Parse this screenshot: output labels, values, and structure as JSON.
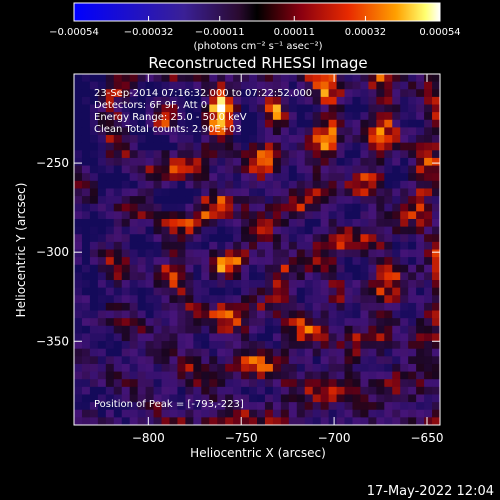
{
  "chart_data": {
    "type": "heatmap",
    "title": "Reconstructed RHESSI Image",
    "xlabel": "Heliocentric X (arcsec)",
    "ylabel": "Heliocentric Y (arcsec)",
    "xlim": [
      -840,
      -643
    ],
    "ylim": [
      -397,
      -200
    ],
    "x_ticks": [
      -800,
      -750,
      -700,
      -650
    ],
    "y_ticks": [
      -250,
      -300,
      -350
    ],
    "x_tick_labels": [
      "−800",
      "−750",
      "−700",
      "−650"
    ],
    "y_tick_labels": [
      "−250",
      "−300",
      "−350"
    ],
    "colorbar": {
      "ticks": [
        -0.00054,
        -0.00032,
        -0.00011,
        0.00011,
        0.00032,
        0.00054
      ],
      "tick_labels": [
        "−0.00054",
        "−0.00032",
        "−0.00011",
        "0.00011",
        "0.00032",
        "0.00054"
      ],
      "unit": "(photons cm⁻² s⁻¹ asec⁻²)",
      "range": [
        -0.00054,
        0.00054
      ]
    },
    "annotations": [
      "23-Sep-2014 07:16:32.000 to 07:22:52.000",
      "Detectors: 6F 9F, Att 0",
      "Energy Range: 25.0 - 50.0 keV",
      "Clean    Total counts: 2.90E+03"
    ],
    "peak_label": "Position of Peak = [-793,-223]",
    "peak": [
      -793,
      -223
    ],
    "colormap": "rhessi-hot"
  },
  "footer": {
    "timestamp": "17-May-2022 12:04"
  }
}
